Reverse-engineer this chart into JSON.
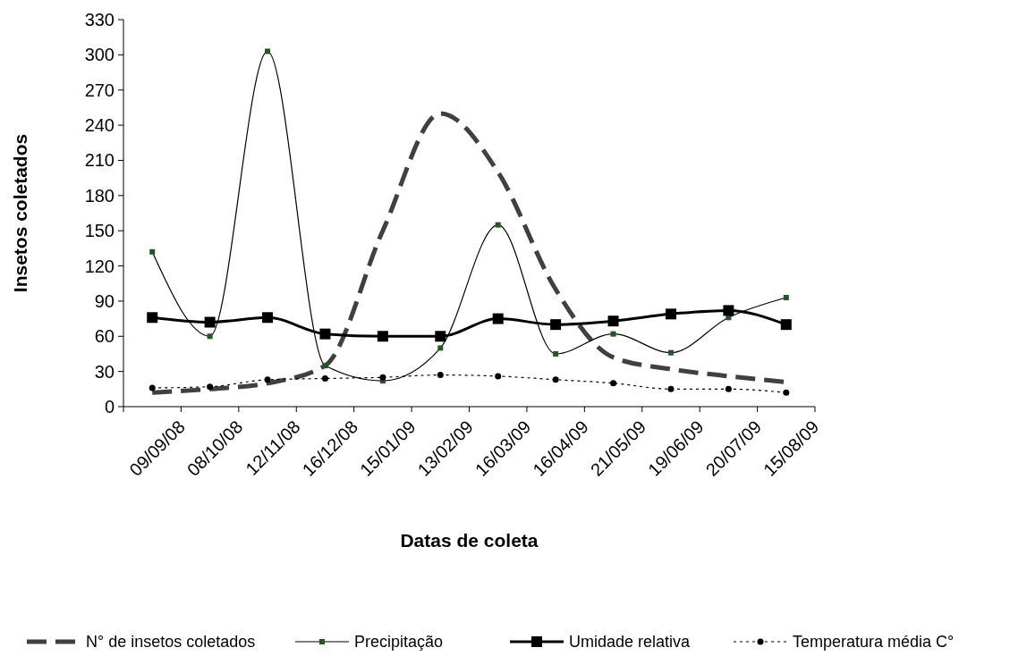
{
  "chart_data": {
    "type": "line",
    "xlabel": "Datas de coleta",
    "ylabel": "Insetos coletados",
    "categories": [
      "09/09/08",
      "08/10/08",
      "12/11/08",
      "16/12/08",
      "15/01/09",
      "13/02/09",
      "16/03/09",
      "16/04/09",
      "21/05/09",
      "19/06/09",
      "20/07/09",
      "15/08/09"
    ],
    "series": [
      {
        "name": "N° de insetos coletados",
        "color": "#404040",
        "line_style": "dashed",
        "marker": "none",
        "values": [
          12,
          15,
          20,
          35,
          150,
          250,
          200,
          100,
          42,
          32,
          26,
          21
        ]
      },
      {
        "name": "Precipitação",
        "color": "#1f5a1f",
        "line_style": "solid",
        "marker": "square",
        "values": [
          132,
          60,
          303,
          35,
          22,
          50,
          155,
          45,
          62,
          46,
          76,
          93
        ]
      },
      {
        "name": "Umidade relativa",
        "color": "#000000",
        "line_style": "solid",
        "marker": "square",
        "values": [
          76,
          72,
          76,
          62,
          60,
          60,
          75,
          70,
          73,
          79,
          82,
          70
        ]
      },
      {
        "name": "Temperatura média C°",
        "color": "#000000",
        "line_style": "dotted",
        "marker": "circle",
        "values": [
          16,
          17,
          23,
          24,
          25,
          27,
          26,
          23,
          20,
          15,
          15,
          12
        ]
      }
    ],
    "ylim": [
      0,
      330
    ],
    "yticks": [
      0,
      30,
      60,
      90,
      120,
      150,
      180,
      210,
      240,
      270,
      300,
      330
    ],
    "grid": false,
    "legend": "bottom"
  }
}
